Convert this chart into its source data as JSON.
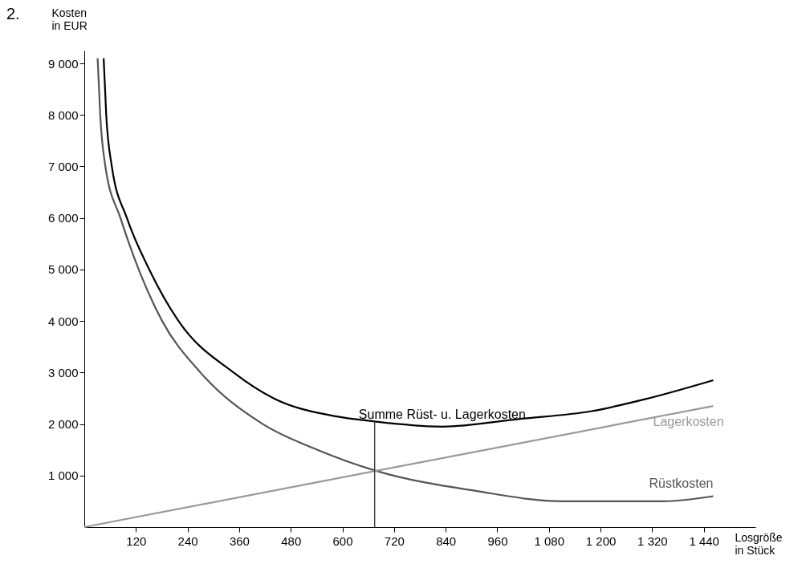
{
  "chart_data": {
    "type": "line",
    "xlabel": "Losgröße\nin Stück",
    "ylabel": "Kosten\nin EUR",
    "xlim": [
      0,
      1560
    ],
    "ylim": [
      0,
      9250
    ],
    "xticks": [
      120,
      240,
      360,
      480,
      600,
      720,
      840,
      960,
      {
        "value": 1080,
        "label": "1 080"
      },
      {
        "value": 1200,
        "label": "1 200"
      },
      {
        "value": 1320,
        "label": "1 320"
      },
      {
        "value": 1440,
        "label": "1 440"
      }
    ],
    "yticks": [
      {
        "value": 1000,
        "label": "1 000"
      },
      {
        "value": 2000,
        "label": "2 000"
      },
      {
        "value": 3000,
        "label": "3 000"
      },
      {
        "value": 4000,
        "label": "4 000"
      },
      {
        "value": 5000,
        "label": "5 000"
      },
      {
        "value": 6000,
        "label": "6 000"
      },
      {
        "value": 7000,
        "label": "7 000"
      },
      {
        "value": 8000,
        "label": "8 000"
      },
      {
        "value": 9000,
        "label": "9 000"
      }
    ],
    "grid": false,
    "legend": false,
    "series": [
      {
        "name": "Summe Rüst- u. Lagerkosten",
        "color": "#000000",
        "x": [
          45,
          51,
          64,
          99,
          151,
          219,
          347,
          440,
          584,
          675,
          832,
          1013,
          1179,
          1312,
          1462
        ],
        "values": [
          9100,
          8000,
          7000,
          6000,
          5000,
          4000,
          3000,
          2500,
          2150,
          2050,
          1950,
          2100,
          2250,
          2500,
          2850
        ]
      },
      {
        "name": "Rüstkosten",
        "color": "#555555",
        "x": [
          31,
          37,
          49,
          84,
          115,
          181,
          270,
          415,
          542,
          675,
          912,
          1111,
          1212,
          1345,
          1462
        ],
        "values": [
          9100,
          8000,
          7000,
          6000,
          5250,
          4000,
          3000,
          2000,
          1500,
          1100,
          700,
          500,
          500,
          500,
          600
        ]
      },
      {
        "name": "Lagerkosten",
        "color": "#999999",
        "x": [
          0,
          1462
        ],
        "values": [
          0,
          2350
        ]
      }
    ],
    "ref_lines": [
      {
        "axis": "x",
        "value": 675,
        "color": "#333333"
      }
    ],
    "annotations": [
      "2."
    ]
  }
}
